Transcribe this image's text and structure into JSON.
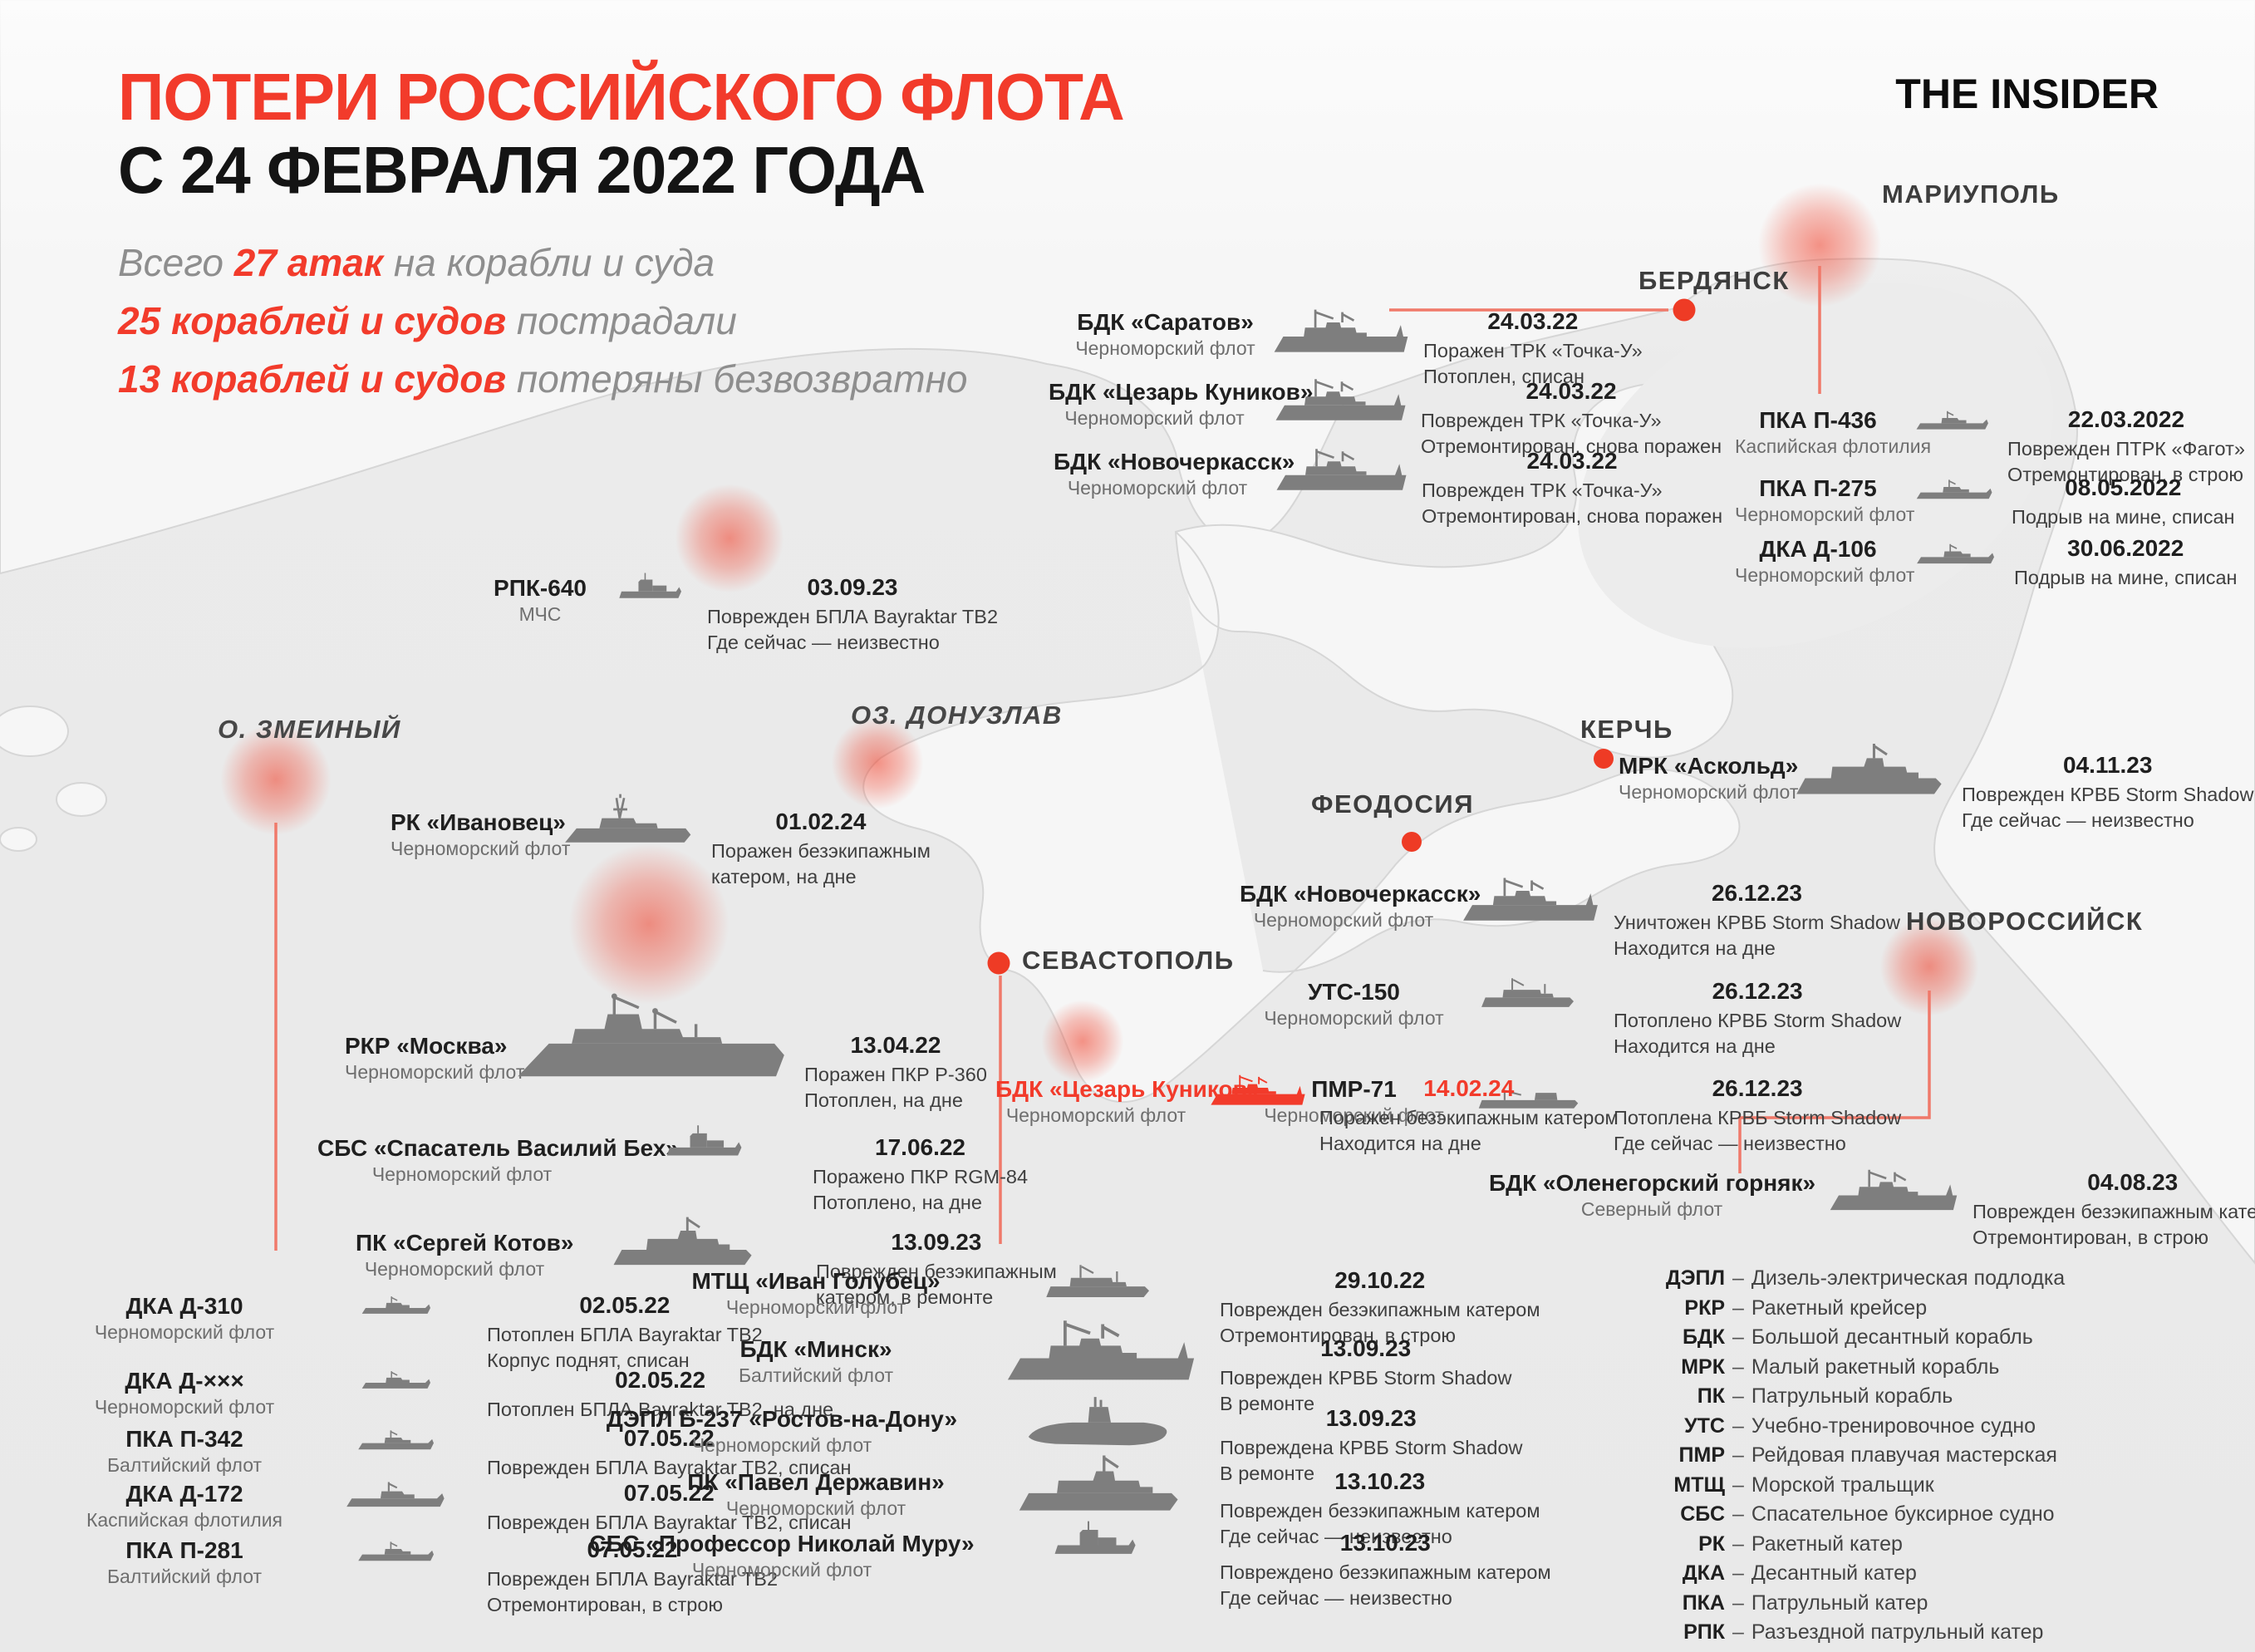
{
  "page": {
    "title_line1": "ПОТЕРИ РОССИЙСКОГО ФЛОТА",
    "title_line2": "С 24 ФЕВРАЛЯ 2022 ГОДА",
    "logo": "THE INSIDER",
    "stats": [
      {
        "pre": "Всего ",
        "em": "27 атак",
        "post": " на корабли и суда"
      },
      {
        "pre": "",
        "em": "25 кораблей и судов",
        "post": " пострадали"
      },
      {
        "pre": "",
        "em": "13 кораблей и судов",
        "post": " потеряны безвозвратно"
      }
    ]
  },
  "colors": {
    "accent": "#F23B2B",
    "ship_gray": "#7E7E7E",
    "text_dark": "#1F1F1F",
    "text_gray": "#8E8E8E"
  },
  "cities": [
    {
      "id": "mariupol",
      "label": "МАРИУПОЛЬ"
    },
    {
      "id": "berdyansk",
      "label": "БЕРДЯНСК"
    },
    {
      "id": "zmeiny",
      "label": "О. ЗМЕИНЫЙ"
    },
    {
      "id": "donuzlav",
      "label": "ОЗ. ДОНУЗЛАВ"
    },
    {
      "id": "kerch",
      "label": "КЕРЧЬ"
    },
    {
      "id": "feodosia",
      "label": "ФЕОДОСИЯ"
    },
    {
      "id": "sevastopol",
      "label": "СЕВАСТОПОЛЬ"
    },
    {
      "id": "novorossiysk",
      "label": "НОВОРОССИЙСК"
    }
  ],
  "entries": [
    {
      "id": "saratov",
      "name": "БДК «Саратов»",
      "fleet": "Черноморский флот",
      "date": "24.03.22",
      "desc": [
        "Поражен ТРК «Точка-У»",
        "Потоплен, списан"
      ]
    },
    {
      "id": "kunikov1",
      "name": "БДК «Цезарь Куников»",
      "fleet": "Черноморский флот",
      "date": "24.03.22",
      "desc": [
        "Поврежден ТРК «Точка-У»",
        "Отремонтирован, снова поражен"
      ]
    },
    {
      "id": "novocherkassk1",
      "name": "БДК «Новочеркасск»",
      "fleet": "Черноморский флот",
      "date": "24.03.22",
      "desc": [
        "Поврежден ТРК «Точка-У»",
        "Отремонтирован, снова поражен"
      ]
    },
    {
      "id": "p436",
      "name": "ПКА П-436",
      "fleet": "Каспийская флотилия",
      "date": "22.03.2022",
      "desc": [
        "Поврежден ПТРК «Фагот»",
        "Отремонтирован, в строю"
      ]
    },
    {
      "id": "p275",
      "name": "ПКА П-275",
      "fleet": "Черноморский флот",
      "date": "08.05.2022",
      "desc": [
        "Подрыв на мине, списан"
      ]
    },
    {
      "id": "d106",
      "name": "ДКА Д-106",
      "fleet": "Черноморский флот",
      "date": "30.06.2022",
      "desc": [
        "Подрыв на мине, списан"
      ]
    },
    {
      "id": "rpk640",
      "name": "РПК-640",
      "fleet": "МЧС",
      "date": "03.09.23",
      "desc": [
        "Поврежден БПЛА Bayraktar TB2",
        "Где сейчас — неизвестно"
      ]
    },
    {
      "id": "ivanovets",
      "name": "РК «Ивановец»",
      "fleet": "Черноморский флот",
      "date": "01.02.24",
      "desc": [
        "Поражен безэкипажным",
        "катером, на дне"
      ]
    },
    {
      "id": "askold",
      "name": "МРК «Аскольд»",
      "fleet": "Черноморский флот",
      "date": "04.11.23",
      "desc": [
        "Поврежден КРВБ Storm Shadow",
        "Где сейчас — неизвестно"
      ]
    },
    {
      "id": "novocherkassk2",
      "name": "БДК «Новочеркасск»",
      "fleet": "Черноморский флот",
      "date": "26.12.23",
      "desc": [
        "Уничтожен КРВБ Storm Shadow",
        "Находится на дне"
      ]
    },
    {
      "id": "uts150",
      "name": "УТС-150",
      "fleet": "Черноморский флот",
      "date": "26.12.23",
      "desc": [
        "Потоплено КРВБ Storm Shadow",
        "Находится на дне"
      ]
    },
    {
      "id": "pmr71",
      "name": "ПМР-71",
      "fleet": "Черноморский флот",
      "date": "26.12.23",
      "desc": [
        "Потоплена КРВБ Storm Shadow",
        "Где сейчас — неизвестно"
      ]
    },
    {
      "id": "moskva",
      "name": "РКР «Москва»",
      "fleet": "Черноморский флот",
      "date": "13.04.22",
      "desc": [
        "Поражен ПКР Р-360",
        "Потоплен, на дне"
      ]
    },
    {
      "id": "bekh",
      "name": "СБС «Спасатель Василий Бех»",
      "fleet": "Черноморский флот",
      "date": "17.06.22",
      "desc": [
        "Поражено ПКР RGM-84",
        "Потоплено, на дне"
      ]
    },
    {
      "id": "kotov",
      "name": "ПК «Сергей Котов»",
      "fleet": "Черноморский флот",
      "date": "13.09.23",
      "desc": [
        "Поврежден безэкипажным",
        "катером, в ремонте"
      ]
    },
    {
      "id": "kunikov2",
      "name": "БДК «Цезарь Куников»",
      "fleet": "Черноморский флот",
      "date": "14.02.24",
      "desc": [
        "Поражен безэкипажным катером",
        "Находится на дне"
      ],
      "highlight": true
    },
    {
      "id": "olenegorsky",
      "name": "БДК «Оленегорский горняк»",
      "fleet": "Северный флот",
      "date": "04.08.23",
      "desc": [
        "Поврежден безэкипажным катером",
        "Отремонтирован, в строю"
      ]
    },
    {
      "id": "d310",
      "name": "ДКА Д-310",
      "fleet": "Черноморский флот",
      "date": "02.05.22",
      "desc": [
        "Потоплен БПЛА Bayraktar TB2",
        "Корпус поднят, списан"
      ]
    },
    {
      "id": "dxxx",
      "name": "ДКА Д-×××",
      "fleet": "Черноморский флот",
      "date": "02.05.22",
      "desc": [
        "Потоплен БПЛА Bayraktar TB2, на дне"
      ]
    },
    {
      "id": "p342",
      "name": "ПКА П-342",
      "fleet": "Балтийский флот",
      "date": "07.05.22",
      "desc": [
        "Поврежден БПЛА Bayraktar TB2, списан"
      ]
    },
    {
      "id": "d172",
      "name": "ДКА Д-172",
      "fleet": "Каспийская флотилия",
      "date": "07.05.22",
      "desc": [
        "Поврежден БПЛА Bayraktar TB2, списан"
      ]
    },
    {
      "id": "p281",
      "name": "ПКА П-281",
      "fleet": "Балтийский флот",
      "date": "07.05.22",
      "desc": [
        "Поврежден БПЛА Bayraktar TB2",
        "Отремонтирован, в строю"
      ]
    },
    {
      "id": "golubets",
      "name": "МТЩ «Иван Голубец»",
      "fleet": "Черноморский флот",
      "date": "29.10.22",
      "desc": [
        "Поврежден безэкипажным катером",
        "Отремонтирован, в строю"
      ]
    },
    {
      "id": "minsk",
      "name": "БДК «Минск»",
      "fleet": "Балтийский флот",
      "date": "13.09.23",
      "desc": [
        "Поврежден КРВБ Storm Shadow",
        "В ремонте"
      ]
    },
    {
      "id": "rostov",
      "name": "ДЭПЛ Б-237 «Ростов-на-Дону»",
      "fleet": "Черноморский флот",
      "date": "13.09.23",
      "desc": [
        "Повреждена КРВБ Storm Shadow",
        "В ремонте"
      ]
    },
    {
      "id": "derzhavin",
      "name": "ПК «Павел Державин»",
      "fleet": "Черноморский флот",
      "date": "13.10.23",
      "desc": [
        "Поврежден безэкипажным катером",
        "Где сейчас — неизвестно"
      ]
    },
    {
      "id": "muru",
      "name": "СБС «Профессор Николай Муру»",
      "fleet": "Черноморский флот",
      "date": "13.10.23",
      "desc": [
        "Повреждено безэкипажным катером",
        "Где сейчас — неизвестно"
      ]
    }
  ],
  "legend": {
    "sep": "–",
    "items": [
      {
        "abbr": "ДЭПЛ",
        "meaning": "Дизель-электрическая подлодка"
      },
      {
        "abbr": "РКР",
        "meaning": "Ракетный крейсер"
      },
      {
        "abbr": "БДК",
        "meaning": "Большой десантный корабль"
      },
      {
        "abbr": "МРК",
        "meaning": "Малый ракетный корабль"
      },
      {
        "abbr": "ПК",
        "meaning": "Патрульный корабль"
      },
      {
        "abbr": "УТС",
        "meaning": "Учебно-тренировочное судно"
      },
      {
        "abbr": "ПМР",
        "meaning": "Рейдовая плавучая мастерская"
      },
      {
        "abbr": "МТЩ",
        "meaning": "Морской тральщик"
      },
      {
        "abbr": "СБС",
        "meaning": "Спасательное буксирное судно"
      },
      {
        "abbr": "РК",
        "meaning": "Ракетный катер"
      },
      {
        "abbr": "ДКА",
        "meaning": "Десантный катер"
      },
      {
        "abbr": "ПКА",
        "meaning": "Патрульный катер"
      },
      {
        "abbr": "РПК",
        "meaning": "Разъездной патрульный катер"
      }
    ]
  }
}
